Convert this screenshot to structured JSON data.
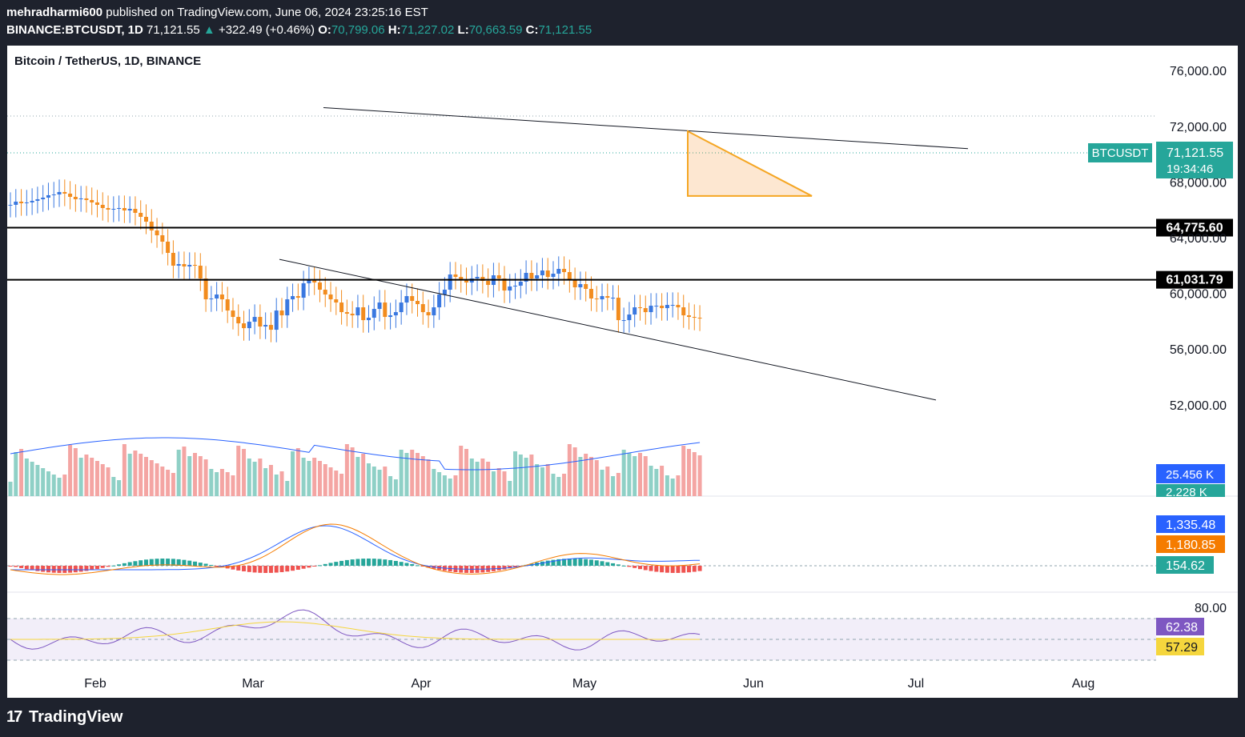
{
  "header": {
    "publisher": "mehradharmi600",
    "published_text": "published on TradingView.com, June 06, 2024 23:25:16 EST",
    "symbol": "BINANCE:BTCUSDT, 1D",
    "last": "71,121.55",
    "change": "+322.49 (+0.46%)",
    "open_label": "O:",
    "open": "70,799.06",
    "high_label": "H:",
    "high": "71,227.02",
    "low_label": "L:",
    "low": "70,663.59",
    "close_label": "C:",
    "close": "71,121.55"
  },
  "chart_title": "Bitcoin / TetherUS, 1D, BINANCE",
  "footer": {
    "brand": "TradingView"
  },
  "colors": {
    "up": "#26a69a",
    "down": "#ef5350",
    "candle_up": "#3a78e0",
    "candle_down": "#f28c1e",
    "vol_up": "#8fd0c6",
    "vol_down": "#f4a5a3",
    "ma_blue": "#2962ff",
    "signal_orange": "#f57c00",
    "rsi_line": "#7e57c2",
    "rsi_ma": "#f5d63d"
  },
  "chart_data": {
    "type": "candlestick",
    "price_axis": {
      "ticks": [
        "76,000.00",
        "72,000.00",
        "68,000.00",
        "64,000.00",
        "60,000.00",
        "56,000.00",
        "52,000.00"
      ],
      "range": [
        50000,
        77500
      ]
    },
    "time_axis": {
      "ticks": [
        "Feb",
        "Mar",
        "Apr",
        "May",
        "Jun",
        "Jul",
        "Aug"
      ]
    },
    "horizontal_levels": [
      {
        "value": 64775.6,
        "label": "64,775.60"
      },
      {
        "value": 61031.79,
        "label": "61,031.79"
      }
    ],
    "last_price_tag": {
      "symbol": "BTCUSDT",
      "price": "71,121.55",
      "countdown": "19:34:46"
    },
    "trendlines": [
      {
        "from": [
          "2024-03-14",
          73400
        ],
        "to": [
          "2024-06-20",
          70450
        ]
      },
      {
        "from": [
          "2024-03-04",
          62500
        ],
        "to": [
          "2024-07-13",
          52400
        ]
      }
    ],
    "triangle_pattern": {
      "apex": [
        "2024-06-11",
        67050
      ],
      "top_left": [
        "2024-05-21",
        71700
      ],
      "bottom_left": [
        "2024-05-21",
        67050
      ]
    },
    "closes": [
      58,
      54,
      56,
      55,
      53,
      51,
      49,
      46,
      45,
      42,
      44,
      48,
      51,
      50,
      52,
      55,
      58,
      62,
      64,
      63,
      62,
      65,
      63,
      68,
      73,
      79,
      90,
      96,
      104,
      118,
      134,
      132,
      135,
      133,
      134,
      150,
      176,
      175,
      170,
      176,
      190,
      198,
      206,
      212,
      204,
      198,
      210,
      208,
      214,
      190,
      196,
      176,
      172,
      174,
      156,
      151,
      155,
      164,
      170,
      176,
      180,
      192,
      194,
      196,
      186,
      202,
      199,
      188,
      180,
      198,
      196,
      192,
      180,
      172,
      178,
      182,
      192,
      196,
      186,
      170,
      164,
      145,
      148,
      152,
      155,
      150,
      148,
      153,
      158,
      146,
      150,
      165,
      160,
      159,
      154,
      143,
      150,
      146,
      140,
      148,
      144,
      138,
      142,
      152,
      161,
      157,
      163,
      175,
      176,
      172,
      174,
      174,
      202,
      202,
      195,
      186,
      187,
      192,
      184,
      184,
      187,
      183,
      183,
      186,
      196,
      198,
      199,
      200
    ],
    "volume": {
      "label_ma": "25.456 K",
      "label_last": "2.228 K"
    },
    "macd": {
      "macd": "1,335.48",
      "signal": "1,180.85",
      "histogram": "154.62"
    },
    "rsi": {
      "tick": "80.00",
      "value": "62.38",
      "ma": "57.29",
      "band": [
        30,
        70
      ]
    }
  }
}
